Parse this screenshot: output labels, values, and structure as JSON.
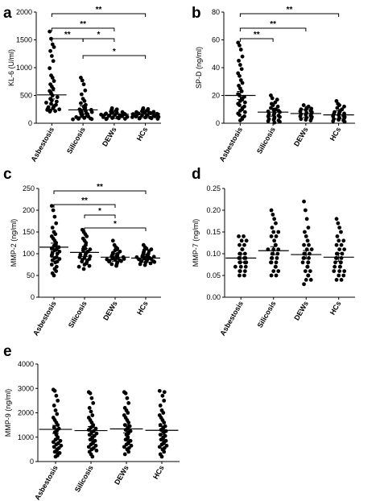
{
  "figure_letters": [
    "a",
    "b",
    "c",
    "d",
    "e"
  ],
  "chart_data": [
    {
      "letter": "a",
      "type": "scatter",
      "ylabel": "KL-6 (U/ml)",
      "ylim": [
        0,
        2000
      ],
      "yticks": [
        "0",
        "500",
        "1000",
        "1500",
        "2000"
      ],
      "categories": [
        "Asbestosis",
        "Silicosis",
        "DEWs",
        "HCs"
      ],
      "means": [
        510,
        240,
        160,
        170
      ],
      "points": [
        [
          1650,
          1520,
          1420,
          1370,
          1300,
          1210,
          1120,
          990,
          860,
          820,
          760,
          700,
          660,
          620,
          580,
          540,
          500,
          470,
          440,
          410,
          390,
          370,
          350,
          330,
          310,
          300,
          290,
          280,
          270,
          260,
          250,
          240,
          230,
          220,
          210
        ],
        [
          820,
          770,
          700,
          590,
          520,
          440,
          400,
          360,
          330,
          300,
          280,
          260,
          250,
          240,
          230,
          220,
          210,
          200,
          190,
          180,
          170,
          160,
          150,
          140,
          130,
          120,
          110,
          100,
          95,
          90,
          85,
          80,
          75,
          70
        ],
        [
          270,
          250,
          240,
          230,
          220,
          210,
          200,
          195,
          190,
          185,
          180,
          175,
          170,
          165,
          160,
          155,
          150,
          145,
          140,
          135,
          130,
          125,
          120,
          115,
          110,
          105,
          100,
          95,
          90,
          85,
          80,
          75
        ],
        [
          270,
          255,
          245,
          235,
          225,
          215,
          205,
          200,
          195,
          190,
          185,
          180,
          175,
          170,
          165,
          160,
          155,
          150,
          145,
          140,
          135,
          130,
          125,
          120,
          115,
          110,
          105,
          100,
          95,
          90,
          85,
          80
        ]
      ],
      "brackets": [
        {
          "from": 0,
          "to": 3,
          "label": "**"
        },
        {
          "from": 0,
          "to": 2,
          "label": "**"
        },
        {
          "from": 0,
          "to": 1,
          "label": "**"
        },
        {
          "from": 1,
          "to": 2,
          "label": "*"
        },
        {
          "from": 1,
          "to": 3,
          "label": "*"
        }
      ]
    },
    {
      "letter": "b",
      "type": "scatter",
      "ylabel": "SP-D (ng/ml)",
      "ylim": [
        0,
        80
      ],
      "yticks": [
        "0",
        "20",
        "40",
        "60",
        "80"
      ],
      "categories": [
        "Asbestosis",
        "Silicosis",
        "DEWs",
        "HCs"
      ],
      "means": [
        20,
        8,
        7,
        6
      ],
      "points": [
        [
          58,
          56,
          53,
          48,
          45,
          42,
          39,
          36,
          34,
          31,
          29,
          27,
          25,
          23,
          21,
          20,
          19,
          18,
          17,
          16,
          15,
          14,
          13,
          12,
          11,
          10,
          9,
          8,
          7,
          6,
          5,
          4,
          3,
          2
        ],
        [
          20,
          18,
          17,
          15,
          14,
          13,
          12,
          11,
          10,
          9.5,
          9,
          8.5,
          8,
          7.5,
          7,
          6.5,
          6,
          5.5,
          5,
          4.5,
          4,
          3.5,
          3,
          2.5,
          2,
          1.5,
          1,
          0.5
        ],
        [
          13,
          12,
          11,
          10.5,
          10,
          9.5,
          9,
          8.5,
          8,
          7.5,
          7,
          6.5,
          6,
          5.5,
          5,
          4.5,
          4,
          3.5,
          3,
          2.5,
          2
        ],
        [
          16,
          14,
          13,
          12,
          11,
          10,
          9,
          8.5,
          8,
          7.5,
          7,
          6.5,
          6,
          5.5,
          5,
          4.5,
          4,
          3.5,
          3,
          2.5,
          2,
          1.5,
          1
        ]
      ],
      "brackets": [
        {
          "from": 0,
          "to": 3,
          "label": "**"
        },
        {
          "from": 0,
          "to": 2,
          "label": "**"
        },
        {
          "from": 0,
          "to": 1,
          "label": "**"
        }
      ]
    },
    {
      "letter": "c",
      "type": "scatter",
      "ylabel": "MMP-2 (ng/ml)",
      "ylim": [
        0,
        250
      ],
      "yticks": [
        "0",
        "50",
        "100",
        "150",
        "200",
        "250"
      ],
      "categories": [
        "Asbestosis",
        "Silicosis",
        "DEWs",
        "HCs"
      ],
      "means": [
        115,
        103,
        92,
        90
      ],
      "points": [
        [
          210,
          200,
          185,
          170,
          160,
          150,
          145,
          140,
          135,
          130,
          125,
          120,
          118,
          115,
          112,
          110,
          108,
          105,
          102,
          100,
          98,
          95,
          92,
          90,
          88,
          85,
          82,
          80,
          75,
          70,
          65,
          60,
          55,
          50
        ],
        [
          155,
          150,
          145,
          140,
          135,
          130,
          125,
          120,
          115,
          112,
          110,
          108,
          105,
          102,
          100,
          98,
          96,
          94,
          92,
          90,
          88,
          86,
          84,
          82,
          80,
          78,
          75,
          72,
          70,
          65
        ],
        [
          130,
          120,
          115,
          112,
          110,
          108,
          105,
          102,
          100,
          98,
          96,
          95,
          94,
          92,
          91,
          90,
          89,
          88,
          87,
          86,
          85,
          84,
          83,
          82,
          80,
          78,
          76,
          74,
          72
        ],
        [
          120,
          115,
          112,
          110,
          108,
          106,
          104,
          102,
          100,
          98,
          96,
          95,
          94,
          93,
          92,
          91,
          90,
          89,
          88,
          87,
          86,
          85,
          84,
          83,
          82,
          81,
          80,
          78,
          76,
          74
        ]
      ],
      "brackets": [
        {
          "from": 0,
          "to": 3,
          "label": "**"
        },
        {
          "from": 0,
          "to": 2,
          "label": "**"
        },
        {
          "from": 1,
          "to": 2,
          "label": "*"
        },
        {
          "from": 1,
          "to": 3,
          "label": "*"
        }
      ]
    },
    {
      "letter": "d",
      "type": "scatter",
      "ylabel": "MMP-7 (ng/ml)",
      "ylim": [
        0,
        0.25
      ],
      "yticks": [
        "0.00",
        "0.05",
        "0.10",
        "0.15",
        "0.20",
        "0.25"
      ],
      "categories": [
        "Asbestosis",
        "Silicosis",
        "DEWs",
        "HCs"
      ],
      "means": [
        0.09,
        0.107,
        0.098,
        0.092
      ],
      "points": [
        [
          0.14,
          0.14,
          0.13,
          0.13,
          0.12,
          0.12,
          0.11,
          0.11,
          0.1,
          0.1,
          0.1,
          0.09,
          0.09,
          0.09,
          0.09,
          0.08,
          0.08,
          0.08,
          0.08,
          0.07,
          0.07,
          0.07,
          0.06,
          0.06,
          0.06,
          0.05,
          0.05
        ],
        [
          0.2,
          0.19,
          0.18,
          0.17,
          0.16,
          0.15,
          0.15,
          0.14,
          0.14,
          0.13,
          0.12,
          0.12,
          0.11,
          0.11,
          0.11,
          0.1,
          0.1,
          0.1,
          0.09,
          0.09,
          0.09,
          0.08,
          0.08,
          0.08,
          0.07,
          0.07,
          0.06,
          0.06,
          0.05,
          0.05
        ],
        [
          0.22,
          0.2,
          0.18,
          0.16,
          0.15,
          0.14,
          0.13,
          0.12,
          0.12,
          0.11,
          0.11,
          0.1,
          0.1,
          0.1,
          0.09,
          0.09,
          0.09,
          0.08,
          0.08,
          0.08,
          0.07,
          0.07,
          0.06,
          0.06,
          0.05,
          0.05,
          0.04,
          0.04,
          0.03
        ],
        [
          0.18,
          0.17,
          0.16,
          0.15,
          0.14,
          0.13,
          0.13,
          0.12,
          0.12,
          0.11,
          0.11,
          0.1,
          0.1,
          0.1,
          0.09,
          0.09,
          0.09,
          0.08,
          0.08,
          0.08,
          0.07,
          0.07,
          0.07,
          0.06,
          0.06,
          0.06,
          0.05,
          0.05,
          0.04,
          0.04
        ]
      ],
      "brackets": []
    },
    {
      "letter": "e",
      "type": "scatter",
      "ylabel": "MMP-9 (ng/ml)",
      "ylim": [
        0,
        4000
      ],
      "yticks": [
        "0",
        "1000",
        "2000",
        "3000",
        "4000"
      ],
      "categories": [
        "Asbestosis",
        "Silicosis",
        "DEWs",
        "HCs"
      ],
      "means": [
        1320,
        1270,
        1340,
        1280
      ],
      "points": [
        [
          2950,
          2900,
          2700,
          2500,
          2300,
          2100,
          1950,
          1800,
          1700,
          1600,
          1500,
          1400,
          1350,
          1300,
          1250,
          1200,
          1100,
          1000,
          950,
          900,
          850,
          800,
          750,
          700,
          650,
          600,
          550,
          500,
          450,
          400,
          350,
          300,
          250,
          200
        ],
        [
          2850,
          2800,
          2600,
          2400,
          2200,
          2050,
          1900,
          1800,
          1700,
          1600,
          1500,
          1450,
          1400,
          1350,
          1300,
          1250,
          1200,
          1150,
          1100,
          1050,
          1000,
          950,
          900,
          850,
          800,
          750,
          700,
          650,
          600,
          550,
          500,
          450,
          400,
          300,
          200
        ],
        [
          2850,
          2800,
          2600,
          2400,
          2200,
          2100,
          2000,
          1900,
          1800,
          1700,
          1600,
          1500,
          1450,
          1400,
          1350,
          1300,
          1250,
          1200,
          1150,
          1100,
          1000,
          950,
          900,
          850,
          800,
          750,
          700,
          650,
          600,
          550,
          500,
          400,
          300
        ],
        [
          2900,
          2850,
          2700,
          2500,
          2300,
          2100,
          2000,
          1900,
          1800,
          1700,
          1600,
          1500,
          1450,
          1400,
          1350,
          1300,
          1250,
          1200,
          1100,
          1050,
          1000,
          950,
          900,
          850,
          800,
          750,
          700,
          650,
          600,
          550,
          500,
          400,
          300,
          200
        ]
      ],
      "brackets": []
    }
  ]
}
